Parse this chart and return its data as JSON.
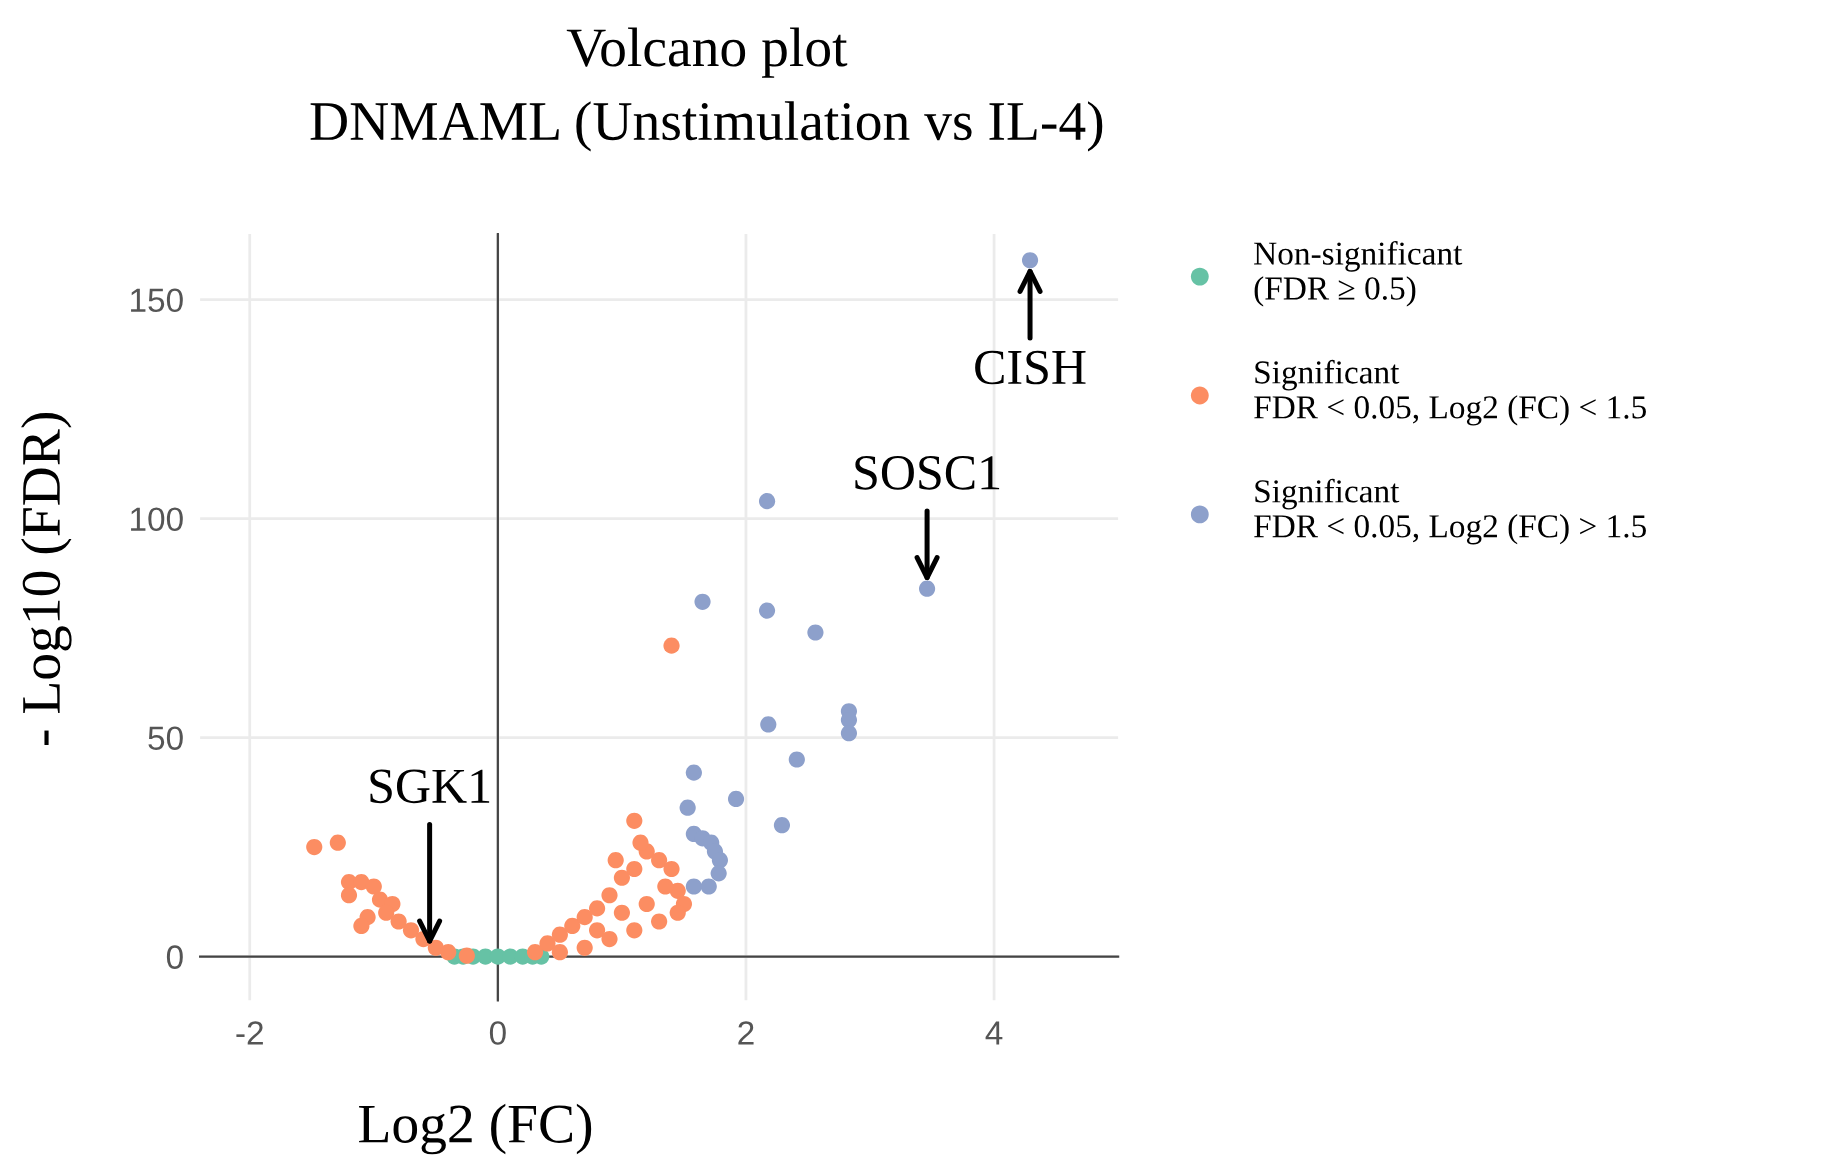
{
  "chart_data": {
    "type": "scatter",
    "title": "Volcano plot",
    "subtitle": "DNMAML (Unstimulation vs IL-4)",
    "xlabel": "Log2 (FC)",
    "ylabel": "- Log10 (FDR)",
    "xlim": [
      -2.4,
      5.0
    ],
    "ylim": [
      -10,
      165
    ],
    "xticks": [
      -2,
      0,
      2,
      4
    ],
    "yticks": [
      0,
      50,
      100,
      150
    ],
    "grid": true,
    "legend": "right",
    "marker": "circle",
    "series": [
      {
        "name": "Non-significant\n(FDR ≥ 0.5)",
        "color": "#66c2a5",
        "x": [
          -0.35,
          -0.28,
          -0.2,
          -0.1,
          0,
          0.1,
          0.2,
          0.28,
          0.35
        ],
        "values": [
          0,
          0,
          0,
          0,
          0,
          0,
          0,
          0,
          0
        ]
      },
      {
        "name": "Significant\nFDR < 0.05, Log2 (FC) < 1.5",
        "color": "#fc8d62",
        "x": [
          1.4,
          -1.48,
          -1.29,
          -1.2,
          -1.1,
          -1.0,
          -1.2,
          -0.95,
          -0.85,
          -0.9,
          -1.05,
          -1.1,
          -0.8,
          -0.7,
          -0.6,
          -0.5,
          -0.4,
          -0.25,
          1.1,
          0.3,
          0.4,
          0.5,
          0.6,
          0.7,
          0.8,
          0.9,
          1.0,
          1.1,
          1.2,
          1.3,
          1.4,
          1.45,
          1.5,
          0.5,
          0.7,
          0.9,
          1.1,
          1.3,
          1.45,
          1.2,
          1.0,
          0.8,
          1.35,
          0.95,
          1.15
        ],
        "values": [
          71,
          25,
          26,
          17,
          17,
          16,
          14,
          13,
          12,
          10,
          9,
          7,
          8,
          6,
          4,
          2,
          1,
          0.2,
          31,
          1,
          3,
          5,
          7,
          9,
          11,
          14,
          18,
          20,
          24,
          22,
          20,
          15,
          12,
          1,
          2,
          4,
          6,
          8,
          10,
          12,
          10,
          6,
          16,
          22,
          26
        ]
      },
      {
        "name": "Significant\nFDR < 0.05, Log2 (FC) > 1.5",
        "color": "#8da0cb",
        "x": [
          4.29,
          3.46,
          2.17,
          1.65,
          2.17,
          2.56,
          2.18,
          2.83,
          2.83,
          2.83,
          1.58,
          2.41,
          1.92,
          1.53,
          2.29,
          1.58,
          1.65,
          1.72,
          1.75,
          1.79,
          1.58,
          1.7,
          1.78
        ],
        "values": [
          159,
          84,
          104,
          81,
          79,
          74,
          53,
          56,
          54,
          51,
          42,
          45,
          36,
          34,
          30,
          28,
          27,
          26,
          24,
          22,
          16,
          16,
          19
        ]
      }
    ],
    "annotations": [
      {
        "text": "CISH",
        "x": 4.29,
        "y": 159
      },
      {
        "text": "SOSC1",
        "x": 3.46,
        "y": 84
      },
      {
        "text": "SGK1",
        "x": -0.55,
        "y": 1
      }
    ]
  }
}
